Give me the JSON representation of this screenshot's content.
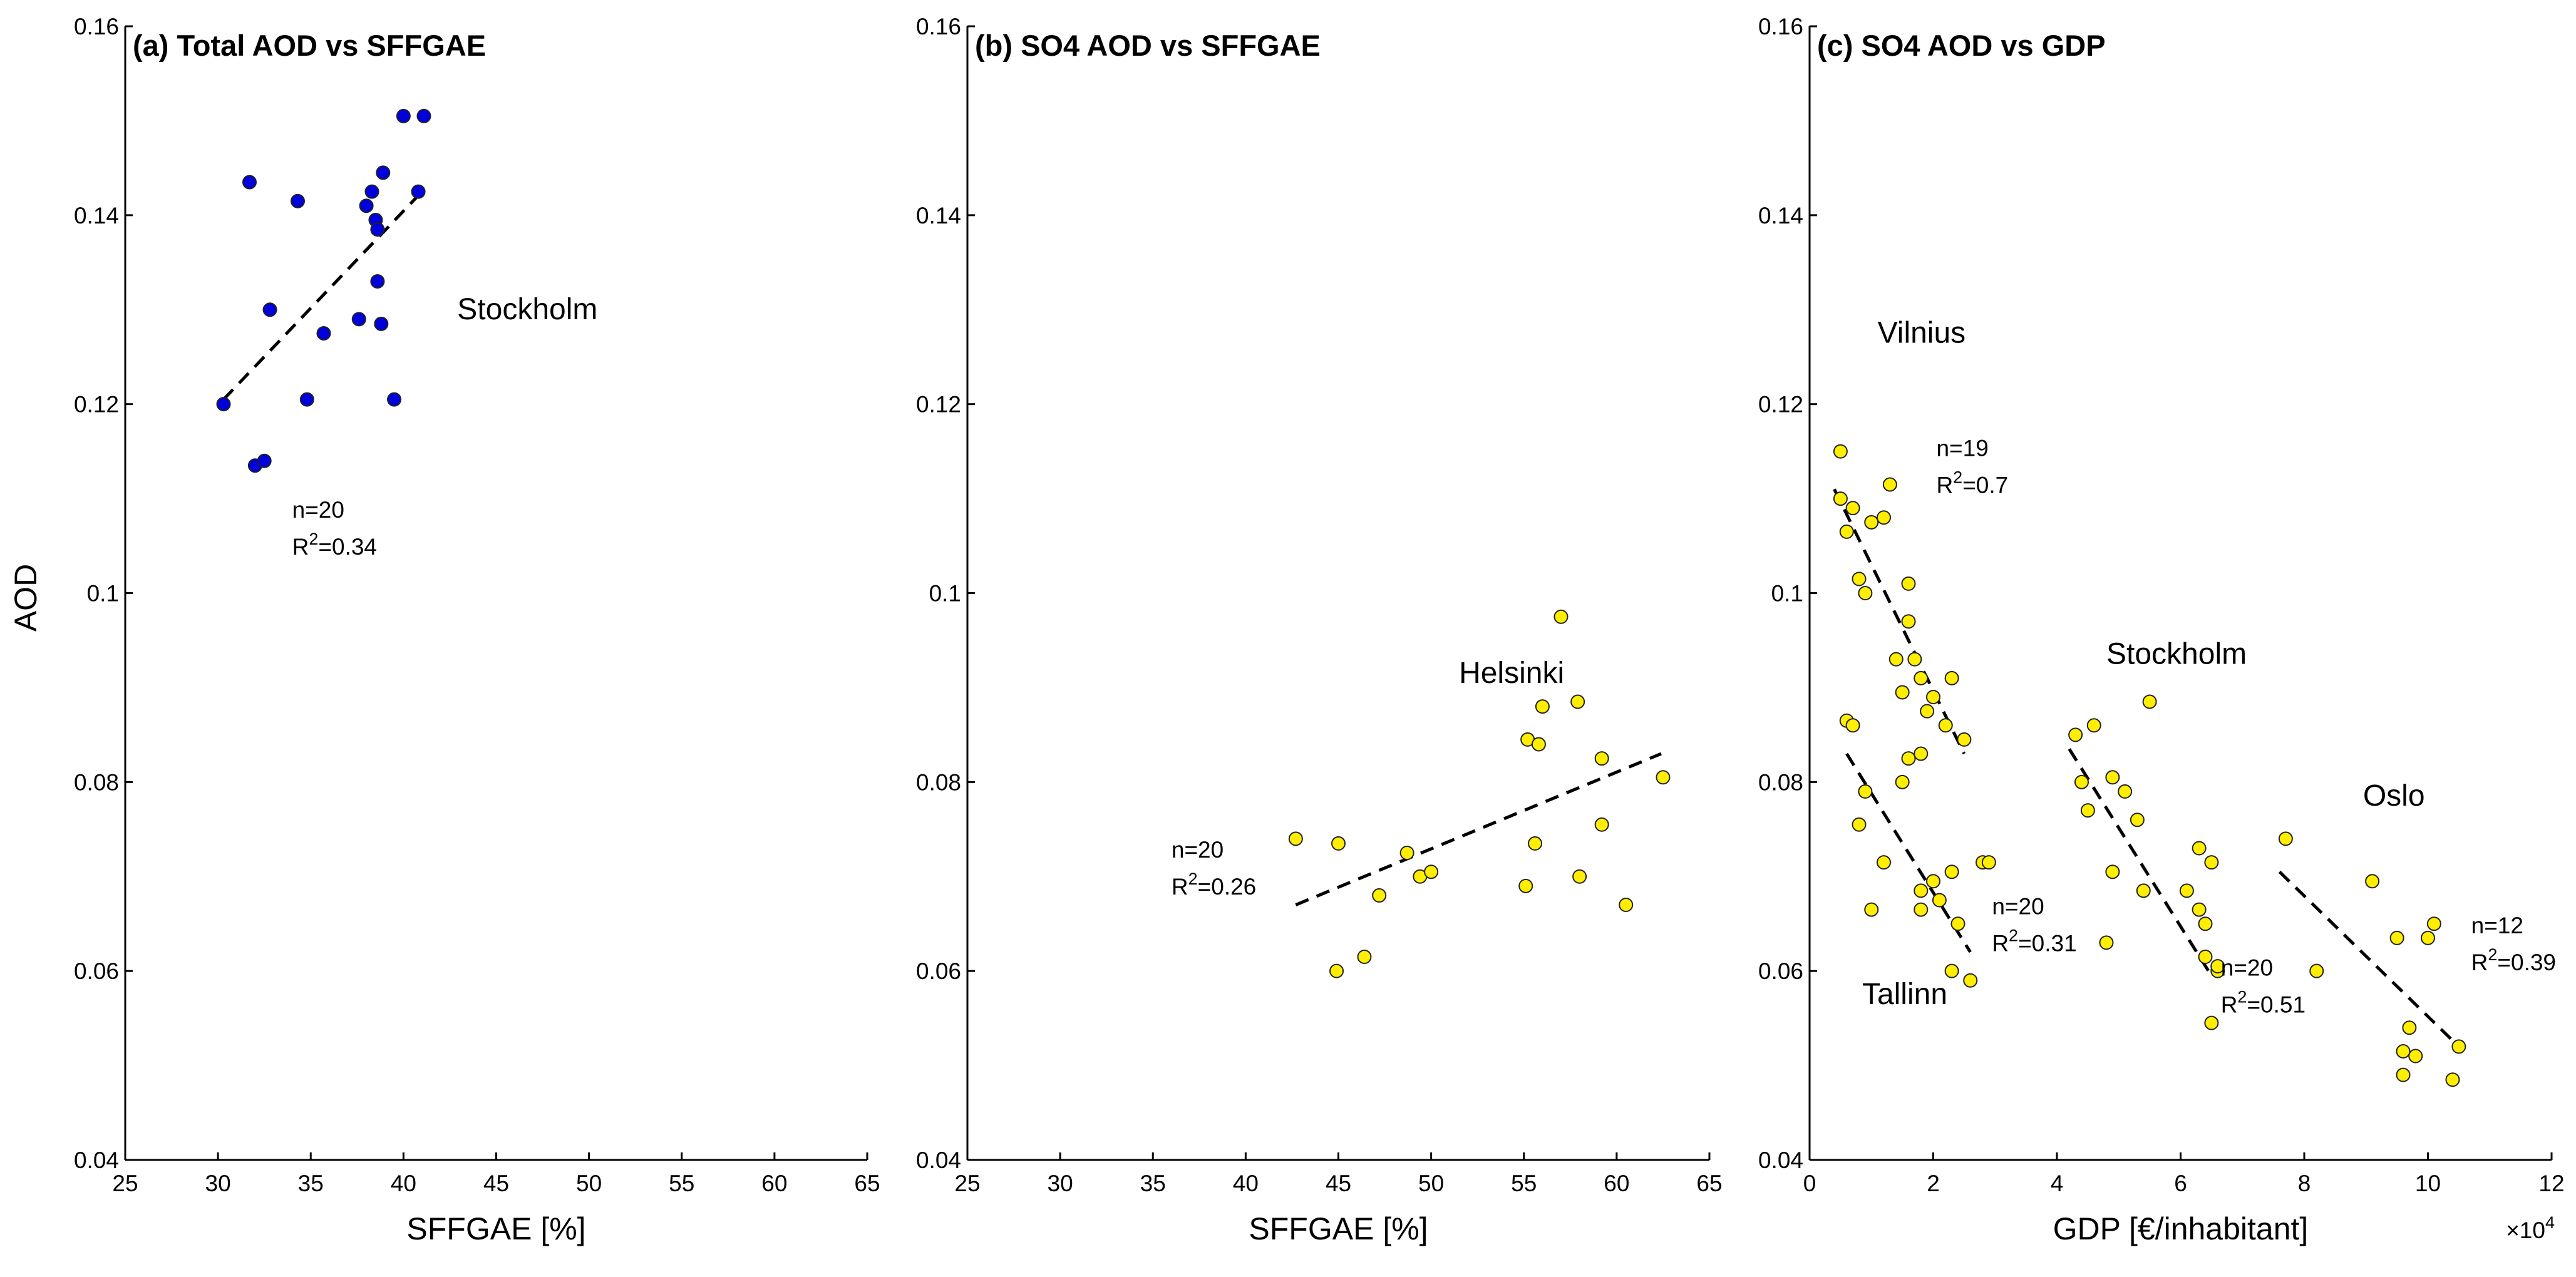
{
  "figure": {
    "shared_ylabel": "AOD",
    "accent_colors": {
      "blue_marker": "#0000dd",
      "yellow_marker": "#ffee00",
      "edge": "#333333"
    }
  },
  "chart_data": [
    {
      "type": "scatter",
      "title": "(a) Total AOD vs SFFGAE",
      "xlabel": "SFFGAE [%]",
      "ylabel": "AOD",
      "xlim": [
        25,
        65
      ],
      "ylim": [
        0.04,
        0.16
      ],
      "xticks": [
        25,
        30,
        35,
        40,
        45,
        50,
        55,
        60,
        65
      ],
      "xtick_labels": [
        "25",
        "30",
        "35",
        "40",
        "45",
        "50",
        "55",
        "60",
        "65"
      ],
      "yticks": [
        0.04,
        0.06,
        0.08,
        0.1,
        0.12,
        0.14,
        0.16
      ],
      "ytick_labels": [
        "0.04",
        "0.06",
        "0.08",
        "0.1",
        "0.12",
        "0.14",
        "0.16"
      ],
      "x_multiplier": "",
      "series": [
        {
          "name": "Stockholm",
          "label_pos": [
            42.9,
            0.129
          ],
          "stats": {
            "n": "n=20",
            "r2": "0.34",
            "pos": [
              34.0,
              0.108
            ]
          },
          "color": "#0000dd",
          "points": [
            [
              30.3,
              0.12
            ],
            [
              31.7,
              0.1435
            ],
            [
              32.0,
              0.1135
            ],
            [
              32.5,
              0.114
            ],
            [
              32.8,
              0.13
            ],
            [
              34.3,
              0.1415
            ],
            [
              34.8,
              0.1205
            ],
            [
              35.7,
              0.1275
            ],
            [
              37.6,
              0.129
            ],
            [
              38.0,
              0.141
            ],
            [
              38.3,
              0.1425
            ],
            [
              38.5,
              0.1395
            ],
            [
              38.6,
              0.133
            ],
            [
              38.8,
              0.1285
            ],
            [
              38.9,
              0.1445
            ],
            [
              39.5,
              0.1205
            ],
            [
              40.0,
              0.1505
            ],
            [
              41.1,
              0.1505
            ],
            [
              40.8,
              0.1425
            ],
            [
              38.6,
              0.1385
            ]
          ],
          "fit": [
            30.3,
            0.1205,
            41.0,
            0.1425
          ]
        }
      ]
    },
    {
      "type": "scatter",
      "title": "(b) SO4 AOD vs SFFGAE",
      "xlabel": "SFFGAE [%]",
      "ylabel": "",
      "xlim": [
        25,
        65
      ],
      "ylim": [
        0.04,
        0.16
      ],
      "xticks": [
        25,
        30,
        35,
        40,
        45,
        50,
        55,
        60,
        65
      ],
      "xtick_labels": [
        "25",
        "30",
        "35",
        "40",
        "45",
        "50",
        "55",
        "60",
        "65"
      ],
      "yticks": [
        0.04,
        0.06,
        0.08,
        0.1,
        0.12,
        0.14,
        0.16
      ],
      "ytick_labels": [
        "0.04",
        "0.06",
        "0.08",
        "0.1",
        "0.12",
        "0.14",
        "0.16"
      ],
      "x_multiplier": "",
      "series": [
        {
          "name": "Helsinki",
          "label_pos": [
            51.5,
            0.0905
          ],
          "stats": {
            "n": "n=20",
            "r2": "0.26",
            "pos": [
              36.0,
              0.072
            ]
          },
          "color": "#ffee00",
          "points": [
            [
              42.7,
              0.074
            ],
            [
              44.9,
              0.06
            ],
            [
              45.0,
              0.0735
            ],
            [
              46.4,
              0.0615
            ],
            [
              47.2,
              0.068
            ],
            [
              48.7,
              0.0725
            ],
            [
              49.4,
              0.07
            ],
            [
              50.0,
              0.0705
            ],
            [
              55.1,
              0.069
            ],
            [
              55.2,
              0.0845
            ],
            [
              55.6,
              0.0735
            ],
            [
              55.8,
              0.084
            ],
            [
              56.0,
              0.088
            ],
            [
              57.0,
              0.0975
            ],
            [
              57.9,
              0.0885
            ],
            [
              58.0,
              0.07
            ],
            [
              59.2,
              0.0755
            ],
            [
              59.2,
              0.0825
            ],
            [
              60.5,
              0.067
            ],
            [
              62.5,
              0.0805
            ]
          ],
          "fit": [
            42.7,
            0.067,
            62.4,
            0.083
          ]
        }
      ]
    },
    {
      "type": "scatter",
      "title": "(c) SO4 AOD vs GDP",
      "xlabel": "GDP [€/inhabitant]",
      "ylabel": "",
      "xlim": [
        0,
        12
      ],
      "ylim": [
        0.04,
        0.16
      ],
      "xticks": [
        0,
        2,
        4,
        6,
        8,
        10,
        12
      ],
      "xtick_labels": [
        "0",
        "2",
        "4",
        "6",
        "8",
        "10",
        "12"
      ],
      "yticks": [
        0.04,
        0.06,
        0.08,
        0.1,
        0.12,
        0.14,
        0.16
      ],
      "ytick_labels": [
        "0.04",
        "0.06",
        "0.08",
        "0.1",
        "0.12",
        "0.14",
        "0.16"
      ],
      "x_multiplier": "×10",
      "x_multiplier_exp": "4",
      "series": [
        {
          "name": "Vilnius",
          "label_pos": [
            1.1,
            0.1265
          ],
          "stats": {
            "n": "n=19",
            "r2": "0.7",
            "pos": [
              2.05,
              0.1145
            ]
          },
          "color": "#ffee00",
          "points": [
            [
              0.5,
              0.115
            ],
            [
              0.5,
              0.11
            ],
            [
              0.6,
              0.1065
            ],
            [
              0.7,
              0.109
            ],
            [
              0.8,
              0.1015
            ],
            [
              0.9,
              0.1
            ],
            [
              1.0,
              0.1075
            ],
            [
              1.2,
              0.108
            ],
            [
              1.3,
              0.1115
            ],
            [
              1.4,
              0.093
            ],
            [
              1.5,
              0.0895
            ],
            [
              1.6,
              0.101
            ],
            [
              1.6,
              0.097
            ],
            [
              1.7,
              0.093
            ],
            [
              1.8,
              0.091
            ],
            [
              1.9,
              0.0875
            ],
            [
              2.0,
              0.089
            ],
            [
              2.3,
              0.091
            ],
            [
              2.5,
              0.0845
            ]
          ],
          "fit": [
            0.4,
            0.111,
            2.5,
            0.083
          ]
        },
        {
          "name": "Tallinn",
          "label_pos": [
            0.85,
            0.0565
          ],
          "stats": {
            "n": "n=20",
            "r2": "0.31",
            "pos": [
              2.95,
              0.066
            ]
          },
          "color": "#ffee00",
          "points": [
            [
              0.6,
              0.0865
            ],
            [
              0.7,
              0.086
            ],
            [
              0.8,
              0.0755
            ],
            [
              0.9,
              0.079
            ],
            [
              1.0,
              0.0665
            ],
            [
              1.2,
              0.0715
            ],
            [
              1.5,
              0.08
            ],
            [
              1.6,
              0.0825
            ],
            [
              1.8,
              0.083
            ],
            [
              1.8,
              0.0685
            ],
            [
              1.8,
              0.0665
            ],
            [
              2.0,
              0.0695
            ],
            [
              2.1,
              0.0675
            ],
            [
              2.2,
              0.086
            ],
            [
              2.3,
              0.0705
            ],
            [
              2.3,
              0.06
            ],
            [
              2.4,
              0.065
            ],
            [
              2.6,
              0.059
            ],
            [
              2.8,
              0.0715
            ],
            [
              2.9,
              0.0715
            ]
          ],
          "fit": [
            0.6,
            0.083,
            2.6,
            0.062
          ]
        },
        {
          "name": "Stockholm",
          "label_pos": [
            4.8,
            0.0925
          ],
          "stats": {
            "n": "n=20",
            "r2": "0.51",
            "pos": [
              6.65,
              0.0595
            ]
          },
          "color": "#ffee00",
          "points": [
            [
              4.3,
              0.085
            ],
            [
              4.4,
              0.08
            ],
            [
              4.5,
              0.077
            ],
            [
              4.6,
              0.086
            ],
            [
              4.8,
              0.063
            ],
            [
              4.9,
              0.0805
            ],
            [
              4.9,
              0.0705
            ],
            [
              5.1,
              0.079
            ],
            [
              5.3,
              0.076
            ],
            [
              5.4,
              0.0685
            ],
            [
              5.5,
              0.0885
            ],
            [
              6.1,
              0.0685
            ],
            [
              6.3,
              0.0665
            ],
            [
              6.3,
              0.073
            ],
            [
              6.4,
              0.065
            ],
            [
              6.4,
              0.0615
            ],
            [
              6.5,
              0.0715
            ],
            [
              6.6,
              0.06
            ],
            [
              6.6,
              0.0605
            ],
            [
              6.5,
              0.0545
            ]
          ],
          "fit": [
            4.2,
            0.0835,
            6.5,
            0.0595
          ]
        },
        {
          "name": "Oslo",
          "label_pos": [
            8.95,
            0.0775
          ],
          "stats": {
            "n": "n=12",
            "r2": "0.39",
            "pos": [
              10.7,
              0.064
            ]
          },
          "color": "#ffee00",
          "points": [
            [
              7.7,
              0.074
            ],
            [
              8.2,
              0.06
            ],
            [
              9.1,
              0.0695
            ],
            [
              9.5,
              0.0635
            ],
            [
              9.6,
              0.0515
            ],
            [
              9.6,
              0.049
            ],
            [
              9.7,
              0.054
            ],
            [
              9.8,
              0.051
            ],
            [
              10.0,
              0.0635
            ],
            [
              10.1,
              0.065
            ],
            [
              10.4,
              0.0485
            ],
            [
              10.5,
              0.052
            ]
          ],
          "fit": [
            7.6,
            0.0705,
            10.5,
            0.052
          ]
        }
      ]
    }
  ]
}
